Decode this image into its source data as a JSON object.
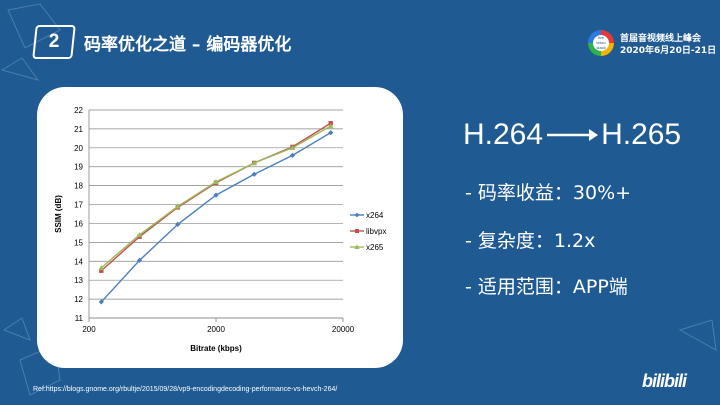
{
  "slide": {
    "badge_number": "2",
    "title": "码率优化之道 – 编码器优化",
    "event_title": "首届音视频线上峰会",
    "event_date": "2020年6月20日-21日",
    "logo_text": "live video stack con",
    "heading_left": "H.264",
    "heading_right": "H.265",
    "bullets": [
      "- 码率收益：30%+",
      "- 复杂度：1.2x",
      "- 适用范围：APP端"
    ],
    "reference": "Ref:https://blogs.gnome.org/rbultje/2015/09/28/vp9-encodingdecoding-performance-vs-hevch-264/",
    "brand": "bilibili",
    "colors": {
      "background": "#1f5a92",
      "accent": "#ffffff"
    }
  },
  "chart_data": {
    "type": "line",
    "x_scale": "log",
    "xlabel": "Bitrate (kbps)",
    "ylabel": "SSIM (dB)",
    "xlim": [
      200,
      20000
    ],
    "ylim": [
      11,
      22
    ],
    "x_ticks": [
      "200",
      "2000",
      "20000"
    ],
    "y_ticks": [
      "11",
      "12",
      "13",
      "14",
      "15",
      "16",
      "17",
      "18",
      "19",
      "20",
      "21",
      "22"
    ],
    "legend_position": "right",
    "grid": true,
    "series": [
      {
        "name": "x264",
        "color": "#4a7ebb",
        "marker": "diamond",
        "x": [
          250,
          500,
          1000,
          2000,
          4000,
          8000,
          16000
        ],
        "y": [
          11.85,
          14.05,
          15.95,
          17.5,
          18.6,
          19.6,
          20.8
        ]
      },
      {
        "name": "libvpx",
        "color": "#c0504d",
        "marker": "square",
        "x": [
          250,
          500,
          1000,
          2000,
          4000,
          8000,
          16000
        ],
        "y": [
          13.5,
          15.3,
          16.85,
          18.15,
          19.2,
          20.05,
          21.3
        ]
      },
      {
        "name": "x265",
        "color": "#9bbb59",
        "marker": "triangle",
        "x": [
          250,
          500,
          1000,
          2000,
          4000,
          8000,
          16000
        ],
        "y": [
          13.65,
          15.4,
          16.9,
          18.2,
          19.2,
          20.0,
          21.15
        ]
      }
    ]
  }
}
